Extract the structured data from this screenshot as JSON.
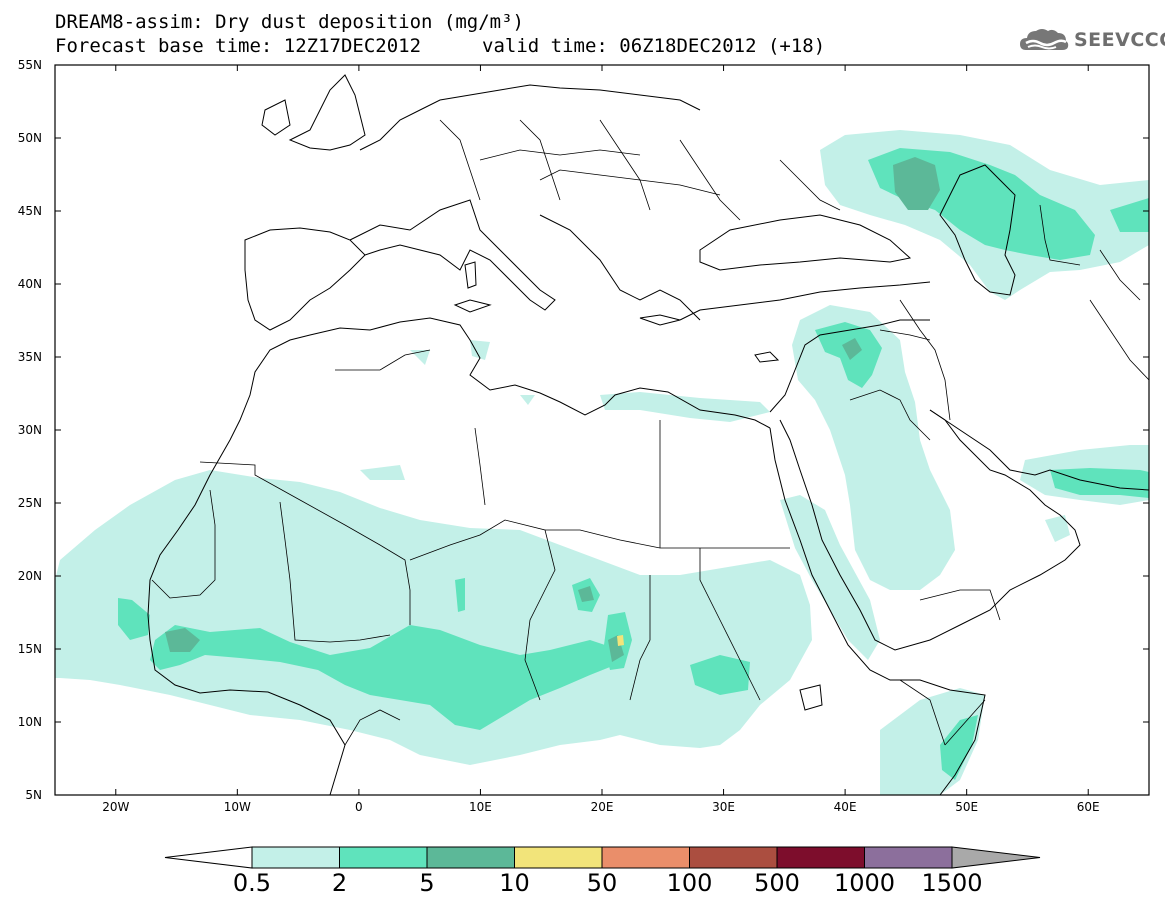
{
  "header": {
    "title": "DREAM8-assim: Dry dust deposition (mg/m³)",
    "base_time": "Forecast base time: 12Z17DEC2012",
    "valid_time": "valid time: 06Z18DEC2012 (+18)",
    "logo_text": "SEEVCCC",
    "logo_icon": "cloud-logo-icon"
  },
  "map": {
    "lat_range": [
      5,
      55
    ],
    "lon_range": [
      -25,
      65
    ],
    "lat_ticks": [
      "55N",
      "50N",
      "45N",
      "40N",
      "35N",
      "30N",
      "25N",
      "20N",
      "15N",
      "10N",
      "5N"
    ],
    "lon_ticks": [
      "20W",
      "10W",
      "0",
      "10E",
      "20E",
      "30E",
      "40E",
      "50E",
      "60E"
    ]
  },
  "colorbar": {
    "labels": [
      "0.5",
      "2",
      "5",
      "10",
      "50",
      "100",
      "500",
      "1000",
      "1500"
    ],
    "colors": [
      "#c3f0e8",
      "#5fe3bc",
      "#5cb898",
      "#f2e47a",
      "#ea8e6a",
      "#ab4e40",
      "#7d0d2c",
      "#8c6f9c",
      "#a9a9a9"
    ]
  }
}
